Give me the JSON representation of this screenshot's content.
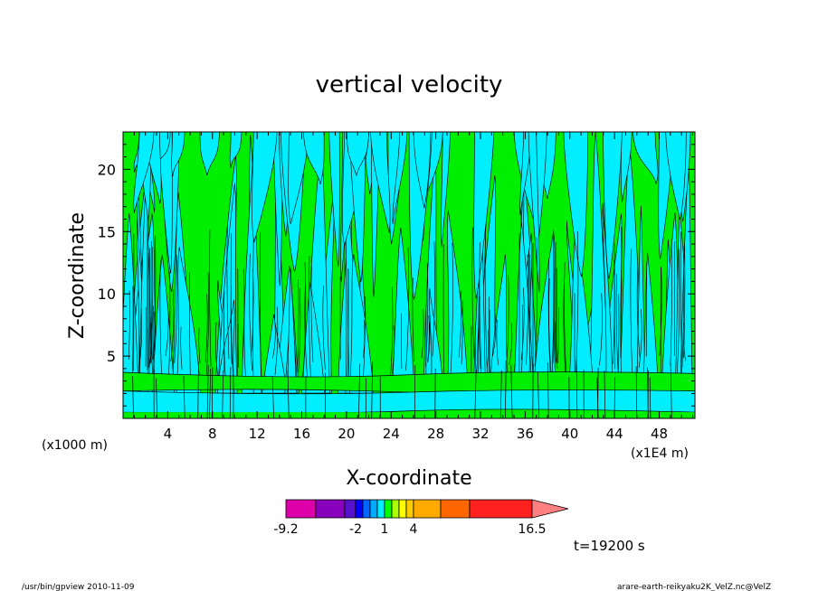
{
  "chart_data": {
    "type": "heatmap",
    "title": "vertical velocity",
    "xlabel": "X-coordinate",
    "ylabel": "Z-coordinate",
    "x_unit_left": "(x1000 m)",
    "x_unit_right": "(x1E4 m)",
    "x_ticks": [
      "4",
      "8",
      "12",
      "16",
      "20",
      "24",
      "28",
      "32",
      "36",
      "40",
      "44",
      "48"
    ],
    "x_tick_values": [
      4,
      8,
      12,
      16,
      20,
      24,
      28,
      32,
      36,
      40,
      44,
      48
    ],
    "xlim": [
      0,
      51.2
    ],
    "y_ticks": [
      "5",
      "10",
      "15",
      "20"
    ],
    "y_tick_values": [
      5,
      10,
      15,
      20
    ],
    "ylim": [
      0,
      23
    ],
    "time_label": "t=19200 s",
    "colorbar": {
      "tick_labels": [
        "-9.2",
        "-2",
        "1",
        "4",
        "16.5"
      ],
      "tick_values": [
        -9.2,
        -2,
        1,
        4,
        16.5
      ],
      "levels": [
        -9.2,
        -7.5,
        -5.8,
        -4,
        -3,
        -2,
        -1,
        0,
        1,
        2,
        3,
        4,
        5.5,
        7,
        8.2,
        16.5
      ],
      "colors": [
        "#dd00aa",
        "#8800bb",
        "#5511cc",
        "#0000ff",
        "#0066ff",
        "#00aaff",
        "#00eeff",
        "#00ff00",
        "#aaff00",
        "#ffff00",
        "#ffcc00",
        "#ffaa00",
        "#ff6600",
        "#ff2020",
        "#ff8080"
      ]
    },
    "field_colors": {
      "negative": "#00eeff",
      "positive": "#00ee00"
    }
  },
  "footer": {
    "left": "/usr/bin/gpview   2010-11-09",
    "right": "arare-earth-reikyaku2K_VelZ.nc@VelZ"
  }
}
